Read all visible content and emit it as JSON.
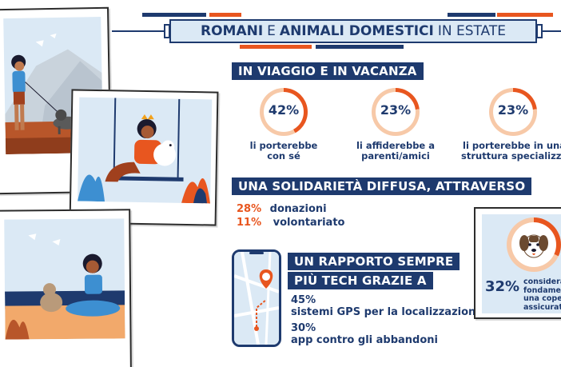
{
  "header": {
    "title_part1": "ROMANI",
    "title_part2": "E",
    "title_part3": "ANIMALI DOMESTICI",
    "title_part4": "IN ESTATE"
  },
  "section_travel": {
    "heading": "IN VIAGGIO E IN VACANZA",
    "items": [
      {
        "percent": "42%",
        "line1": "li porterebbe",
        "line2": "con sé"
      },
      {
        "percent": "23%",
        "line1": "li affiderebbe a",
        "line2": "parenti/amici"
      },
      {
        "percent": "23%",
        "line1": "li porterebbe in una",
        "line2": "struttura specializzata"
      }
    ]
  },
  "section_solidarity": {
    "heading": "UNA SOLIDARIETÀ DIFFUSA, ATTRAVERSO",
    "items": [
      {
        "percent": "28%",
        "label": "donazioni"
      },
      {
        "percent": "11%",
        "label": "volontariato"
      }
    ]
  },
  "section_tech": {
    "heading_line1": "UN RAPPORTO SEMPRE",
    "heading_line2": "PIÙ TECH GRAZIE A",
    "items": [
      {
        "percent": "45%",
        "label": "sistemi GPS per la localizzazione"
      },
      {
        "percent": "30%",
        "label": "app contro gli abbandoni"
      }
    ]
  },
  "insurance_card": {
    "percent": "32%",
    "line1": "considera",
    "line2": "fondamen",
    "line3": "una coper",
    "line4": "assicurati"
  },
  "colors": {
    "navy": "#1e3a6e",
    "orange": "#e8561f",
    "light_orange": "#f7c9a8",
    "sky": "#dbe9f5"
  }
}
